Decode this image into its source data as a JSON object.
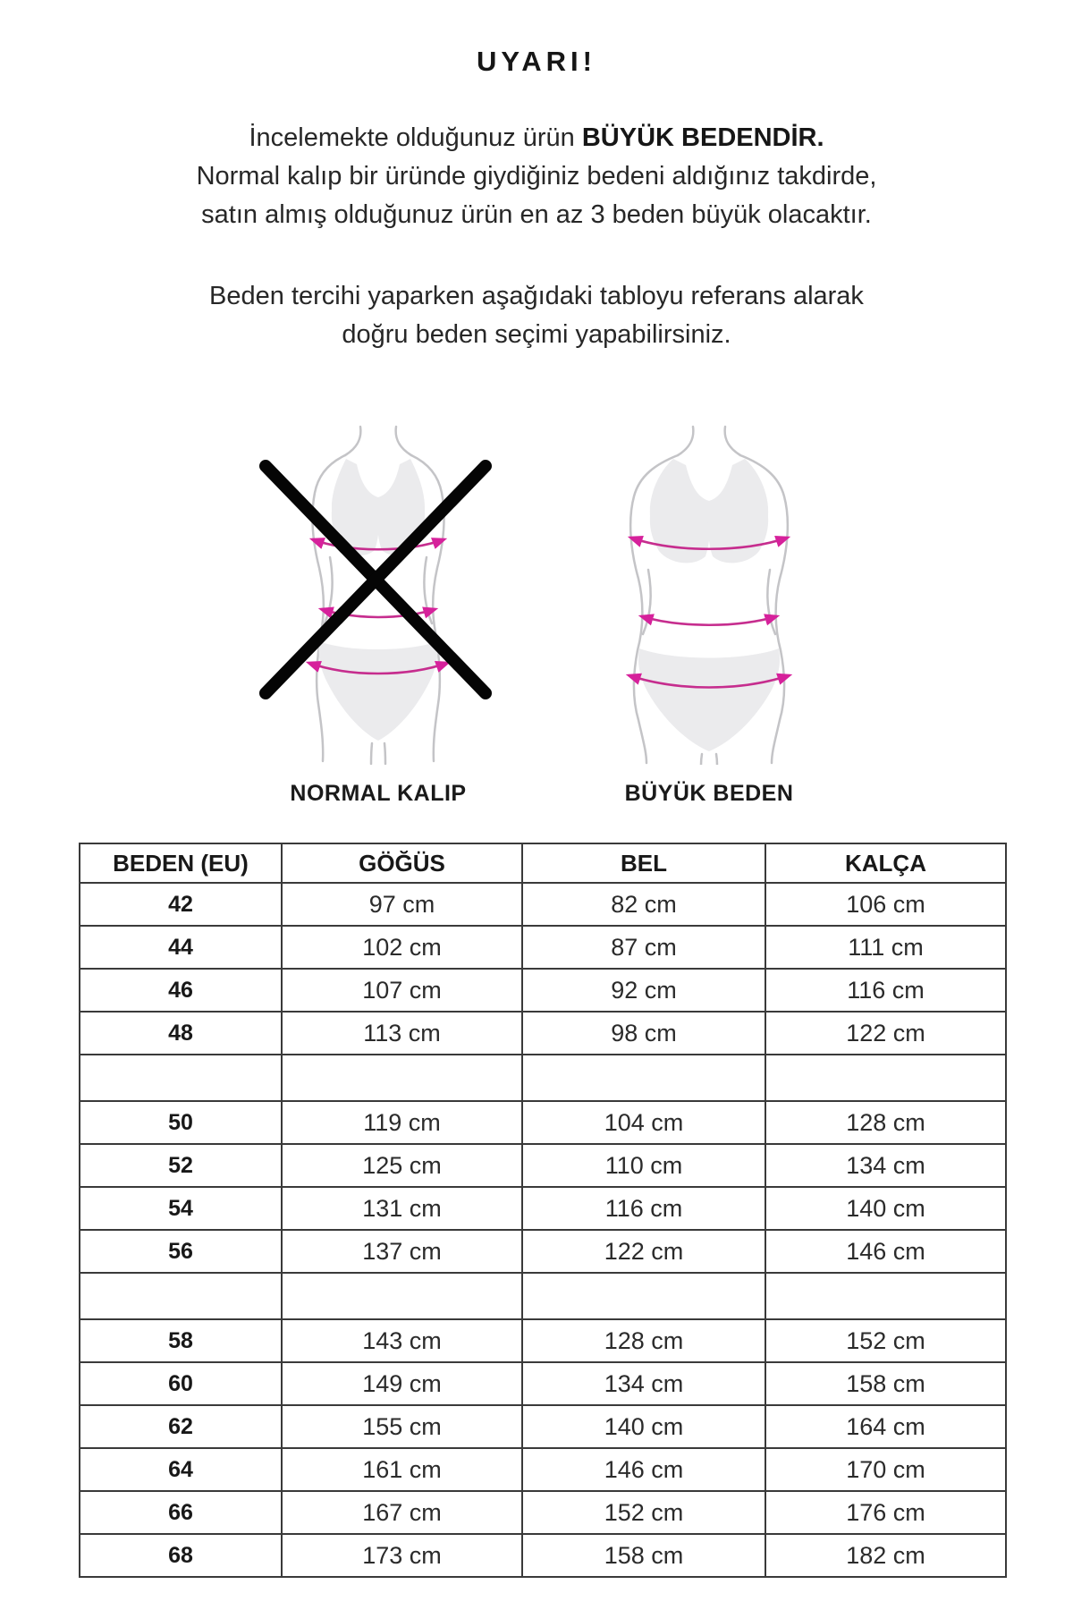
{
  "page": {
    "title": "UYARI!",
    "intro": {
      "line1_normal": "İncelemekte olduğunuz ürün ",
      "line1_bold": "BÜYÜK BEDENDİR.",
      "line2": "Normal kalıp bir üründe giydiğiniz bedeni aldığınız takdirde,",
      "line3": "satın almış olduğunuz ürün en az 3 beden büyük olacaktır."
    },
    "note_line1": "Beden tercihi yaparken aşağıdaki tabloyu referans alarak",
    "note_line2": "doğru beden seçimi yapabilirsiniz."
  },
  "figures": {
    "normal_label": "NORMAL KALIP",
    "plus_label": "BÜYÜK BEDEN"
  },
  "size_table": {
    "headers": [
      "BEDEN (EU)",
      "GÖĞÜS",
      "BEL",
      "KALÇA"
    ],
    "rows": [
      [
        "42",
        "97 cm",
        "82 cm",
        "106 cm"
      ],
      [
        "44",
        "102 cm",
        "87 cm",
        "111 cm"
      ],
      [
        "46",
        "107 cm",
        "92 cm",
        "116 cm"
      ],
      [
        "48",
        "113 cm",
        "98 cm",
        "122 cm"
      ],
      [
        "",
        "",
        "",
        ""
      ],
      [
        "50",
        "119 cm",
        "104 cm",
        "128 cm"
      ],
      [
        "52",
        "125 cm",
        "110 cm",
        "134 cm"
      ],
      [
        "54",
        "131 cm",
        "116 cm",
        "140 cm"
      ],
      [
        "56",
        "137 cm",
        "122 cm",
        "146 cm"
      ],
      [
        "",
        "",
        "",
        ""
      ],
      [
        "58",
        "143 cm",
        "128 cm",
        "152 cm"
      ],
      [
        "60",
        "149 cm",
        "134 cm",
        "158 cm"
      ],
      [
        "62",
        "155 cm",
        "140 cm",
        "164 cm"
      ],
      [
        "64",
        "161 cm",
        "146 cm",
        "170 cm"
      ],
      [
        "66",
        "167 cm",
        "152 cm",
        "176 cm"
      ],
      [
        "68",
        "173 cm",
        "158 cm",
        "182 cm"
      ]
    ]
  },
  "colors": {
    "text": "#1d1d1d",
    "table_border": "#3a3a3a",
    "arrow_magenta": "#c62d8e",
    "arrowhead_magenta": "#d6219b",
    "silhouette_fill": "#ebebed",
    "silhouette_outline": "#c4c4c7",
    "cross_black": "#050505"
  }
}
